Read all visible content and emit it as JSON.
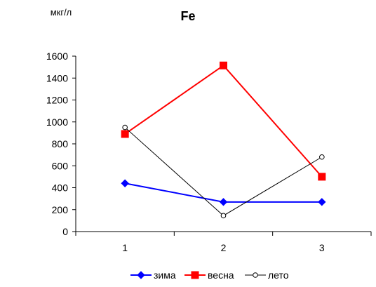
{
  "chart_data": {
    "type": "line",
    "title": "Fe",
    "ylabel": "мкг/л",
    "xlabel": "",
    "categories": [
      "1",
      "2",
      "3"
    ],
    "ylim": [
      0,
      1600
    ],
    "yticks": [
      "0",
      "200",
      "400",
      "600",
      "800",
      "1000",
      "1200",
      "1400",
      "1600"
    ],
    "grid": false,
    "legend_position": "bottom",
    "series": [
      {
        "name": "зима",
        "values": [
          440,
          270,
          270
        ],
        "color": "#0000ff",
        "marker": "diamond"
      },
      {
        "name": "весна",
        "values": [
          890,
          1515,
          500
        ],
        "color": "#ff0000",
        "marker": "square"
      },
      {
        "name": "лето",
        "values": [
          950,
          145,
          680
        ],
        "color": "#000000",
        "marker": "open-circle"
      }
    ]
  }
}
